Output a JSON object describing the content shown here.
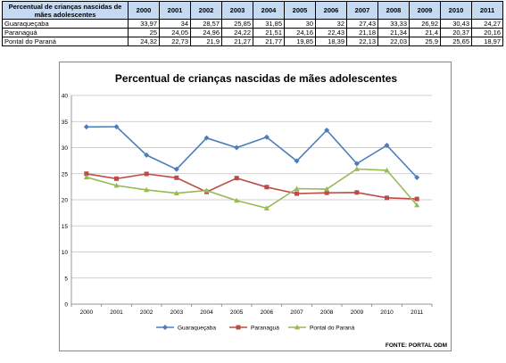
{
  "table": {
    "header_title": "Percentual de crianças nascidas de mães adolescentes",
    "years": [
      "2000",
      "2001",
      "2002",
      "2003",
      "2004",
      "2005",
      "2006",
      "2007",
      "2008",
      "2009",
      "2010",
      "2011"
    ],
    "rows": [
      {
        "name": "Guaraqueçaba",
        "values": [
          "33,97",
          "34",
          "28,57",
          "25,85",
          "31,85",
          "30",
          "32",
          "27,43",
          "33,33",
          "26,92",
          "30,43",
          "24,27"
        ]
      },
      {
        "name": "Paranaguá",
        "values": [
          "25",
          "24,05",
          "24,96",
          "24,22",
          "21,51",
          "24,16",
          "22,43",
          "21,18",
          "21,34",
          "21,4",
          "20,37",
          "20,16"
        ]
      },
      {
        "name": "Pontal do Paraná",
        "values": [
          "24,32",
          "22,73",
          "21,9",
          "21,27",
          "21,77",
          "19,85",
          "18,39",
          "22,13",
          "22,03",
          "25,9",
          "25,65",
          "18,97"
        ]
      }
    ]
  },
  "chart_data": {
    "type": "line",
    "title": "Percentual de crianças nascidas de mães adolescentes",
    "categories": [
      "2000",
      "2001",
      "2002",
      "2003",
      "2004",
      "2005",
      "2006",
      "2007",
      "2008",
      "2009",
      "2010",
      "2011"
    ],
    "ylim": [
      0,
      40
    ],
    "yticks": [
      "0",
      "5",
      "10",
      "15",
      "20",
      "25",
      "30",
      "35",
      "40"
    ],
    "grid": true,
    "legend_position": "bottom",
    "series": [
      {
        "name": "Guaraqueçaba",
        "color": "#4a7ebb",
        "marker": "diamond",
        "values": [
          33.97,
          34,
          28.57,
          25.85,
          31.85,
          30,
          32,
          27.43,
          33.33,
          26.92,
          30.43,
          24.27
        ]
      },
      {
        "name": "Paranaguá",
        "color": "#be4b48",
        "marker": "square",
        "values": [
          25,
          24.05,
          24.96,
          24.22,
          21.51,
          24.16,
          22.43,
          21.18,
          21.34,
          21.4,
          20.37,
          20.16
        ]
      },
      {
        "name": "Pontal do Paraná",
        "color": "#98b954",
        "marker": "triangle",
        "values": [
          24.32,
          22.73,
          21.9,
          21.27,
          21.77,
          19.85,
          18.39,
          22.13,
          22.03,
          25.9,
          25.65,
          18.97
        ]
      }
    ],
    "source": "FONTE: PORTAL ODM"
  }
}
